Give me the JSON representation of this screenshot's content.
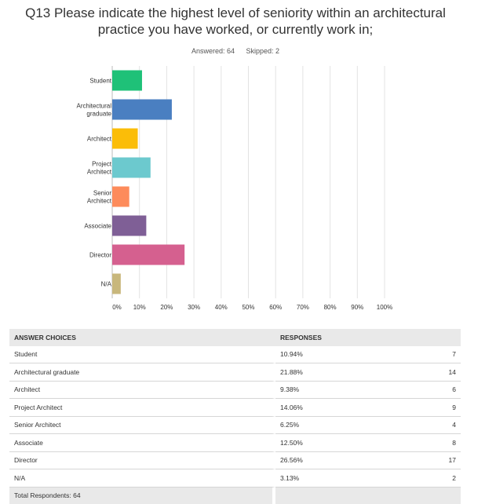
{
  "question": {
    "title_line1": "Q13 Please indicate the highest level of seniority within an architectural",
    "title_line2": "practice you have worked, or currently work in;",
    "answered": "Answered: 64",
    "skipped": "Skipped: 2"
  },
  "chart_data": {
    "type": "bar",
    "orientation": "horizontal",
    "categories": [
      [
        "Student"
      ],
      [
        "Architectural",
        "graduate"
      ],
      [
        "Architect"
      ],
      [
        "Project",
        "Architect"
      ],
      [
        "Senior",
        "Architect"
      ],
      [
        "Associate"
      ],
      [
        "Director"
      ],
      [
        "N/A"
      ]
    ],
    "values": [
      10.94,
      21.88,
      9.38,
      14.06,
      6.25,
      12.5,
      26.56,
      3.13
    ],
    "colors": [
      "#1fc178",
      "#4a7fc1",
      "#fbbd08",
      "#6cc9ce",
      "#fd8b5b",
      "#7f5f96",
      "#d5608f",
      "#c8b77c"
    ],
    "xlim": [
      0,
      100
    ],
    "ticks": [
      "0%",
      "10%",
      "20%",
      "30%",
      "40%",
      "50%",
      "60%",
      "70%",
      "80%",
      "90%",
      "100%"
    ],
    "grid": true
  },
  "table": {
    "headers": [
      "ANSWER CHOICES",
      "RESPONSES"
    ],
    "rows": [
      {
        "label": "Student",
        "pct": "10.94%",
        "count": "7"
      },
      {
        "label": "Architectural graduate",
        "pct": "21.88%",
        "count": "14"
      },
      {
        "label": "Architect",
        "pct": "9.38%",
        "count": "6"
      },
      {
        "label": "Project Architect",
        "pct": "14.06%",
        "count": "9"
      },
      {
        "label": "Senior Architect",
        "pct": "6.25%",
        "count": "4"
      },
      {
        "label": "Associate",
        "pct": "12.50%",
        "count": "8"
      },
      {
        "label": "Director",
        "pct": "26.56%",
        "count": "17"
      },
      {
        "label": "N/A",
        "pct": "3.13%",
        "count": "2"
      }
    ],
    "footer": "Total Respondents: 64"
  }
}
